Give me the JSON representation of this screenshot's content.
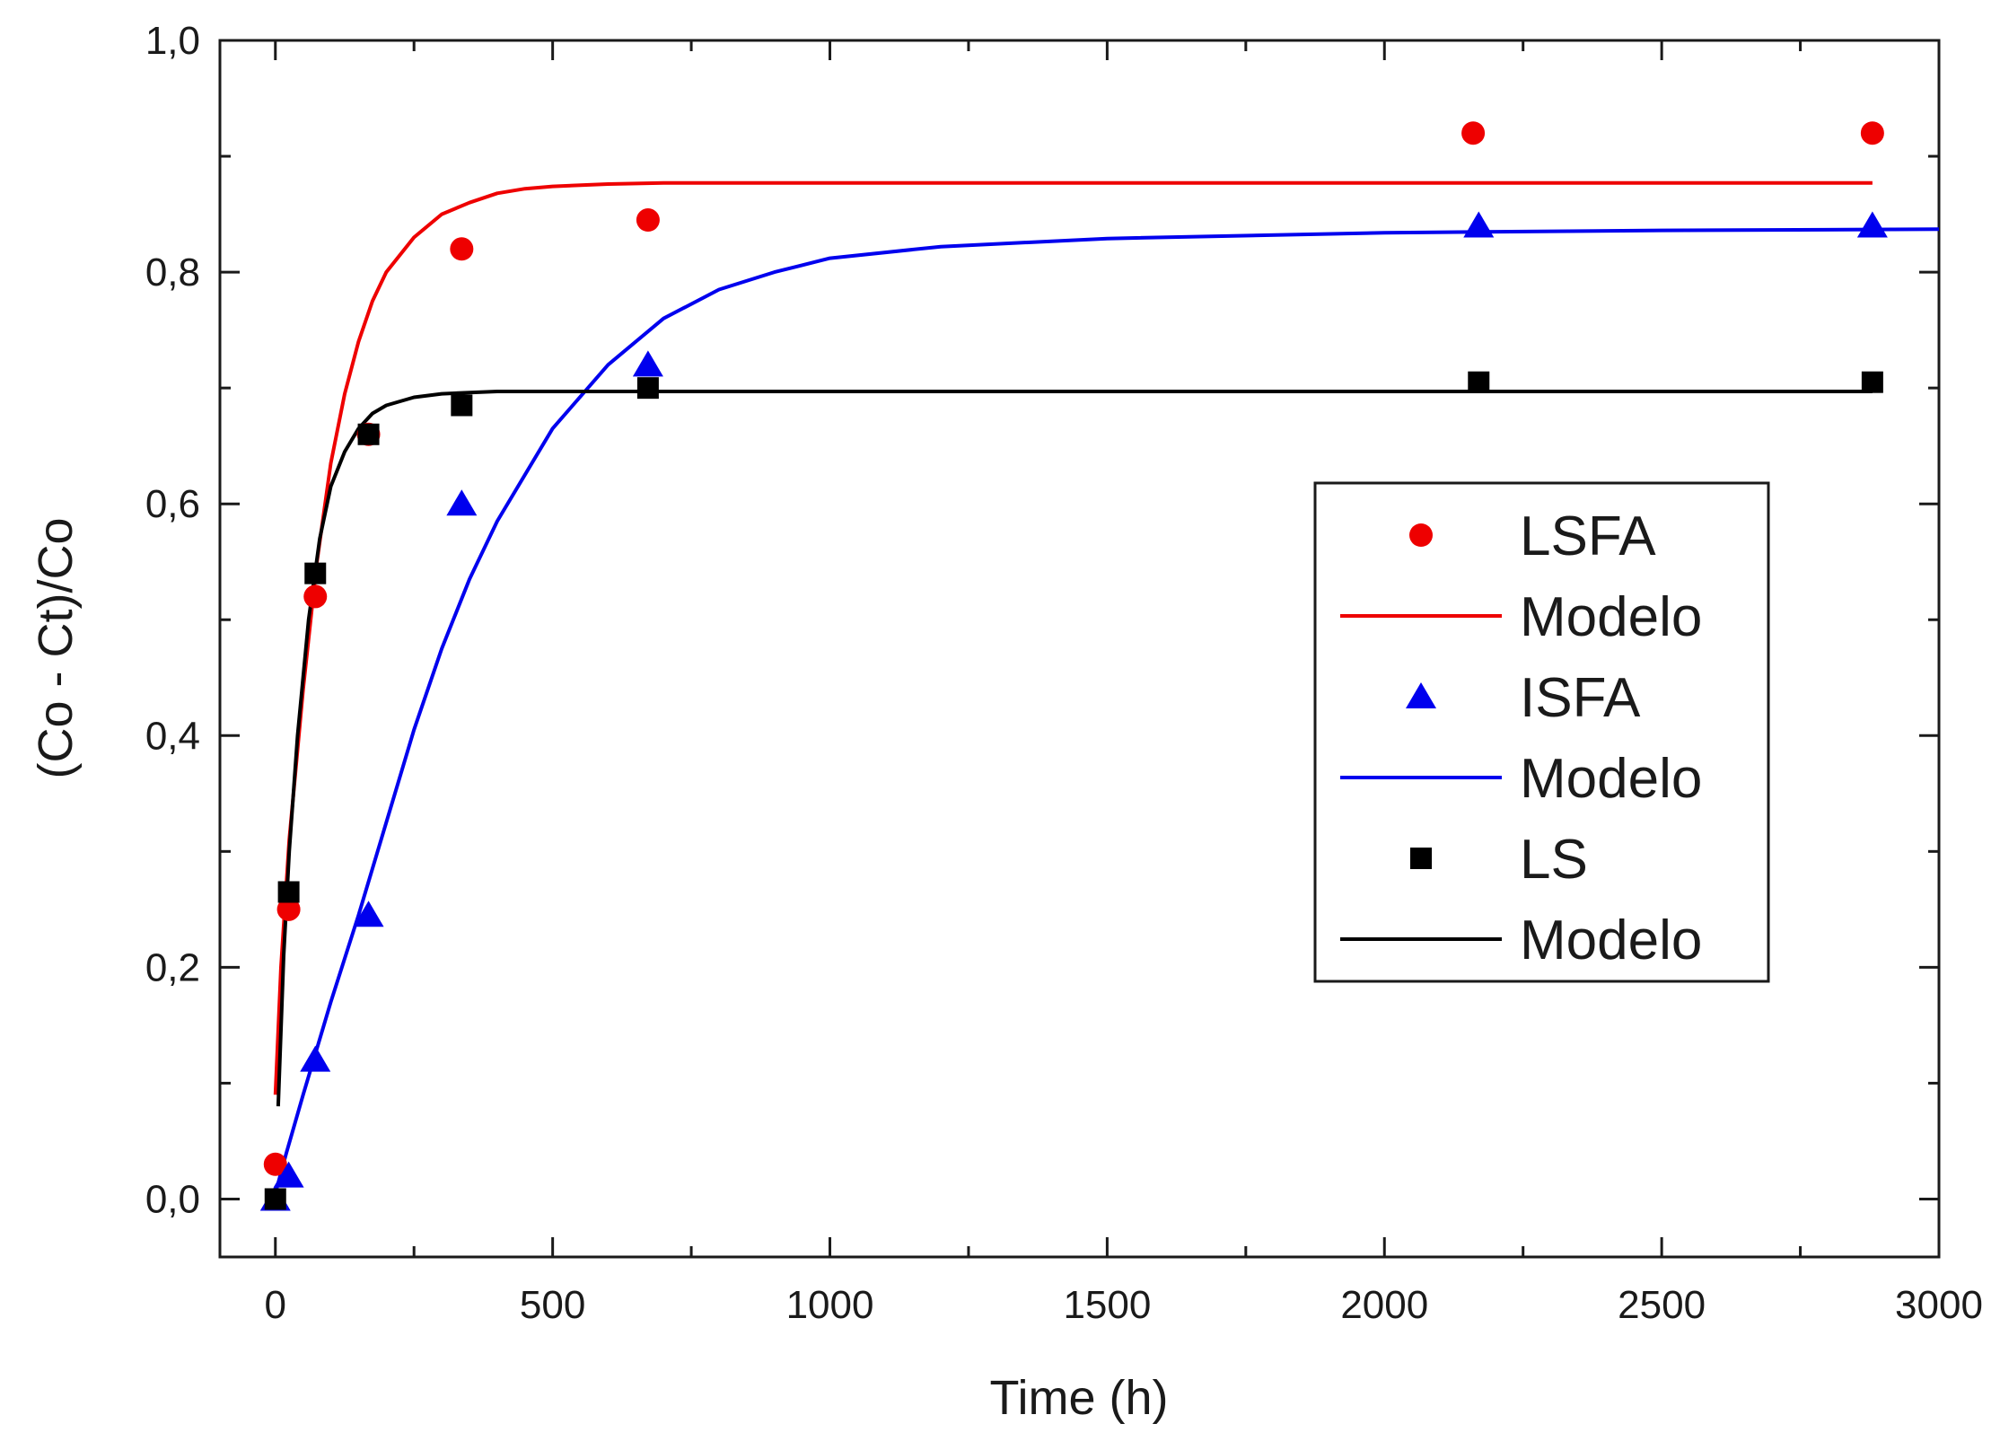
{
  "chart_data": {
    "type": "scatter",
    "title": "",
    "xlabel": "Time (h)",
    "ylabel": "(Co - Ct)/Co",
    "xlim": [
      -100,
      3000
    ],
    "ylim": [
      -0.05,
      1.0
    ],
    "x_ticks": [
      0,
      500,
      1000,
      1500,
      2000,
      2500,
      3000
    ],
    "x_tick_labels": [
      "0",
      "500",
      "1000",
      "1500",
      "2000",
      "2500",
      "3000"
    ],
    "y_ticks": [
      0.0,
      0.2,
      0.4,
      0.6,
      0.8,
      1.0
    ],
    "y_tick_labels": [
      "0,0",
      "0,2",
      "0,4",
      "0,6",
      "0,8",
      "1,0"
    ],
    "grid": false,
    "legend_position": "right",
    "series": [
      {
        "name": "LSFA",
        "kind": "points",
        "marker": "circle",
        "color": "#ee0000",
        "x": [
          0,
          24,
          72,
          168,
          336,
          672,
          2160,
          2880
        ],
        "y": [
          0.03,
          0.25,
          0.52,
          0.66,
          0.82,
          0.845,
          0.92,
          0.92
        ]
      },
      {
        "name": "Modelo",
        "kind": "line",
        "color": "#ee0000",
        "x": [
          0,
          10,
          25,
          50,
          75,
          100,
          125,
          150,
          175,
          200,
          250,
          300,
          350,
          400,
          450,
          500,
          600,
          700,
          1000,
          1500,
          2000,
          2500,
          2880
        ],
        "y": [
          0.09,
          0.2,
          0.31,
          0.44,
          0.55,
          0.635,
          0.695,
          0.74,
          0.775,
          0.8,
          0.83,
          0.85,
          0.86,
          0.868,
          0.872,
          0.874,
          0.876,
          0.877,
          0.877,
          0.877,
          0.877,
          0.877,
          0.877
        ]
      },
      {
        "name": "ISFA",
        "kind": "points",
        "marker": "triangle",
        "color": "#0000ee",
        "x": [
          0,
          24,
          72,
          168,
          336,
          672,
          2170,
          2880
        ],
        "y": [
          0.0,
          0.02,
          0.12,
          0.245,
          0.6,
          0.72,
          0.84,
          0.84
        ]
      },
      {
        "name": "Modelo",
        "kind": "line",
        "color": "#0000ee",
        "x": [
          0,
          20,
          50,
          100,
          150,
          200,
          250,
          300,
          350,
          400,
          500,
          600,
          700,
          800,
          900,
          1000,
          1200,
          1500,
          2000,
          2500,
          3000
        ],
        "y": [
          0.005,
          0.04,
          0.09,
          0.17,
          0.245,
          0.325,
          0.405,
          0.475,
          0.535,
          0.585,
          0.665,
          0.72,
          0.76,
          0.785,
          0.8,
          0.812,
          0.822,
          0.829,
          0.834,
          0.836,
          0.837
        ]
      },
      {
        "name": "LS",
        "kind": "points",
        "marker": "square",
        "color": "#000000",
        "x": [
          0,
          24,
          72,
          168,
          336,
          672,
          2170,
          2880
        ],
        "y": [
          0.0,
          0.265,
          0.54,
          0.66,
          0.685,
          0.7,
          0.705,
          0.705
        ]
      },
      {
        "name": "Modelo",
        "kind": "line",
        "color": "#000000",
        "x": [
          5,
          15,
          25,
          40,
          60,
          80,
          100,
          125,
          150,
          175,
          200,
          250,
          300,
          400,
          600,
          1000,
          2000,
          2880
        ],
        "y": [
          0.08,
          0.21,
          0.3,
          0.4,
          0.5,
          0.57,
          0.615,
          0.645,
          0.665,
          0.678,
          0.685,
          0.692,
          0.695,
          0.697,
          0.697,
          0.697,
          0.697,
          0.697
        ]
      }
    ]
  }
}
